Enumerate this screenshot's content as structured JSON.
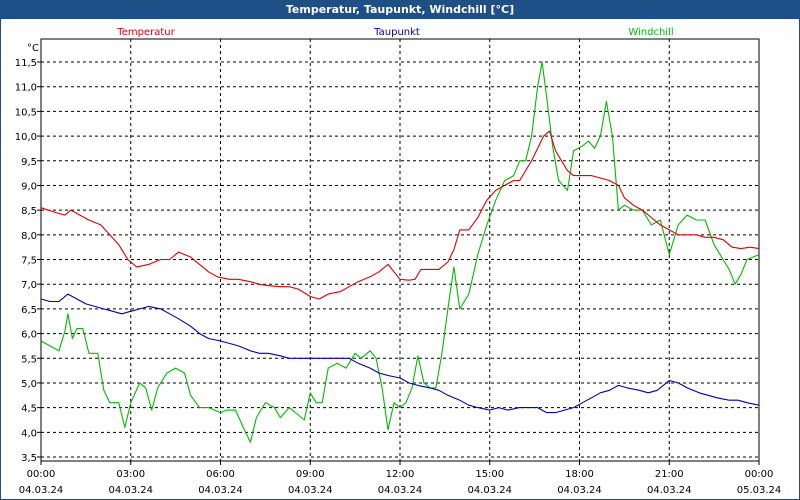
{
  "window": {
    "title": "Temperatur, Taupunkt, Windchill [°C]"
  },
  "chart_data": {
    "type": "line",
    "ylabel": "°C",
    "ylim": [
      3.4,
      11.8
    ],
    "yticks": [
      "3,5",
      "4,0",
      "4,5",
      "5,0",
      "5,5",
      "6,0",
      "6,5",
      "7,0",
      "7,5",
      "8,0",
      "8,5",
      "9,0",
      "9,5",
      "10,0",
      "10,5",
      "11,0",
      "11,5"
    ],
    "xlim": [
      0,
      24
    ],
    "xticks": [
      {
        "time": "00:00",
        "date": "04.03.24"
      },
      {
        "time": "03:00",
        "date": "04.03.24"
      },
      {
        "time": "06:00",
        "date": "04.03.24"
      },
      {
        "time": "09:00",
        "date": "04.03.24"
      },
      {
        "time": "12:00",
        "date": "04.03.24"
      },
      {
        "time": "15:00",
        "date": "04.03.24"
      },
      {
        "time": "18:00",
        "date": "04.03.24"
      },
      {
        "time": "21:00",
        "date": "04.03.24"
      },
      {
        "time": "00:00",
        "date": "05.03.24"
      }
    ],
    "grid": true,
    "series": [
      {
        "name": "Temperatur",
        "color": "#dd0000",
        "points": [
          [
            0,
            8.55
          ],
          [
            0.5,
            8.45
          ],
          [
            0.8,
            8.4
          ],
          [
            1.0,
            8.5
          ],
          [
            1.3,
            8.4
          ],
          [
            1.6,
            8.3
          ],
          [
            2.0,
            8.2
          ],
          [
            2.3,
            8.0
          ],
          [
            2.6,
            7.8
          ],
          [
            2.9,
            7.5
          ],
          [
            3.2,
            7.35
          ],
          [
            3.6,
            7.4
          ],
          [
            4.0,
            7.5
          ],
          [
            4.3,
            7.5
          ],
          [
            4.6,
            7.65
          ],
          [
            5.0,
            7.55
          ],
          [
            5.3,
            7.4
          ],
          [
            5.6,
            7.25
          ],
          [
            5.9,
            7.15
          ],
          [
            6.3,
            7.1
          ],
          [
            6.6,
            7.1
          ],
          [
            7.0,
            7.05
          ],
          [
            7.3,
            7.0
          ],
          [
            7.6,
            6.97
          ],
          [
            8.0,
            6.95
          ],
          [
            8.3,
            6.95
          ],
          [
            8.6,
            6.9
          ],
          [
            9.0,
            6.75
          ],
          [
            9.3,
            6.7
          ],
          [
            9.6,
            6.8
          ],
          [
            10.0,
            6.85
          ],
          [
            10.3,
            6.95
          ],
          [
            10.6,
            7.05
          ],
          [
            11.0,
            7.15
          ],
          [
            11.3,
            7.25
          ],
          [
            11.6,
            7.4
          ],
          [
            11.8,
            7.25
          ],
          [
            12.0,
            7.1
          ],
          [
            12.3,
            7.08
          ],
          [
            12.5,
            7.1
          ],
          [
            12.7,
            7.3
          ],
          [
            13.0,
            7.3
          ],
          [
            13.3,
            7.3
          ],
          [
            13.6,
            7.45
          ],
          [
            13.8,
            7.7
          ],
          [
            14.0,
            8.1
          ],
          [
            14.3,
            8.1
          ],
          [
            14.6,
            8.35
          ],
          [
            14.9,
            8.7
          ],
          [
            15.2,
            8.9
          ],
          [
            15.5,
            9.0
          ],
          [
            15.8,
            9.1
          ],
          [
            16.0,
            9.1
          ],
          [
            16.2,
            9.3
          ],
          [
            16.4,
            9.5
          ],
          [
            16.6,
            9.75
          ],
          [
            16.8,
            10.0
          ],
          [
            17.0,
            10.1
          ],
          [
            17.2,
            9.7
          ],
          [
            17.4,
            9.5
          ],
          [
            17.6,
            9.3
          ],
          [
            17.8,
            9.2
          ],
          [
            18.1,
            9.2
          ],
          [
            18.4,
            9.2
          ],
          [
            18.7,
            9.15
          ],
          [
            19.0,
            9.1
          ],
          [
            19.3,
            9.0
          ],
          [
            19.5,
            8.75
          ],
          [
            19.8,
            8.6
          ],
          [
            20.1,
            8.5
          ],
          [
            20.4,
            8.35
          ],
          [
            20.7,
            8.2
          ],
          [
            21.0,
            8.1
          ],
          [
            21.3,
            8.0
          ],
          [
            21.6,
            8.0
          ],
          [
            21.9,
            8.0
          ],
          [
            22.2,
            7.95
          ],
          [
            22.5,
            7.95
          ],
          [
            22.8,
            7.9
          ],
          [
            23.1,
            7.75
          ],
          [
            23.4,
            7.72
          ],
          [
            23.7,
            7.75
          ],
          [
            24.0,
            7.72
          ]
        ]
      },
      {
        "name": "Taupunkt",
        "color": "#0000aa",
        "points": [
          [
            0,
            6.7
          ],
          [
            0.3,
            6.65
          ],
          [
            0.6,
            6.65
          ],
          [
            0.9,
            6.8
          ],
          [
            1.2,
            6.7
          ],
          [
            1.5,
            6.6
          ],
          [
            1.8,
            6.55
          ],
          [
            2.1,
            6.5
          ],
          [
            2.4,
            6.45
          ],
          [
            2.7,
            6.4
          ],
          [
            3.0,
            6.45
          ],
          [
            3.3,
            6.5
          ],
          [
            3.6,
            6.55
          ],
          [
            4.0,
            6.5
          ],
          [
            4.3,
            6.4
          ],
          [
            4.6,
            6.3
          ],
          [
            5.0,
            6.15
          ],
          [
            5.3,
            6.0
          ],
          [
            5.6,
            5.9
          ],
          [
            6.0,
            5.85
          ],
          [
            6.3,
            5.8
          ],
          [
            6.6,
            5.75
          ],
          [
            7.0,
            5.65
          ],
          [
            7.3,
            5.6
          ],
          [
            7.6,
            5.6
          ],
          [
            8.0,
            5.55
          ],
          [
            8.3,
            5.5
          ],
          [
            8.6,
            5.5
          ],
          [
            9.0,
            5.5
          ],
          [
            9.3,
            5.5
          ],
          [
            9.6,
            5.5
          ],
          [
            10.0,
            5.5
          ],
          [
            10.3,
            5.5
          ],
          [
            10.6,
            5.4
          ],
          [
            11.0,
            5.3
          ],
          [
            11.3,
            5.2
          ],
          [
            11.6,
            5.15
          ],
          [
            12.0,
            5.1
          ],
          [
            12.3,
            5.0
          ],
          [
            12.6,
            4.95
          ],
          [
            13.0,
            4.9
          ],
          [
            13.3,
            4.85
          ],
          [
            13.6,
            4.75
          ],
          [
            14.0,
            4.65
          ],
          [
            14.3,
            4.55
          ],
          [
            14.6,
            4.5
          ],
          [
            15.0,
            4.45
          ],
          [
            15.3,
            4.5
          ],
          [
            15.6,
            4.45
          ],
          [
            16.0,
            4.5
          ],
          [
            16.3,
            4.5
          ],
          [
            16.6,
            4.5
          ],
          [
            16.9,
            4.4
          ],
          [
            17.2,
            4.4
          ],
          [
            17.5,
            4.45
          ],
          [
            17.8,
            4.5
          ],
          [
            18.1,
            4.6
          ],
          [
            18.4,
            4.7
          ],
          [
            18.7,
            4.8
          ],
          [
            19.0,
            4.85
          ],
          [
            19.3,
            4.95
          ],
          [
            19.6,
            4.9
          ],
          [
            20.0,
            4.85
          ],
          [
            20.3,
            4.8
          ],
          [
            20.6,
            4.85
          ],
          [
            21.0,
            5.05
          ],
          [
            21.3,
            5.0
          ],
          [
            21.6,
            4.9
          ],
          [
            22.0,
            4.8
          ],
          [
            22.3,
            4.75
          ],
          [
            22.6,
            4.7
          ],
          [
            23.0,
            4.65
          ],
          [
            23.3,
            4.65
          ],
          [
            23.6,
            4.6
          ],
          [
            24.0,
            4.55
          ]
        ]
      },
      {
        "name": "Windchill",
        "color": "#00bb00",
        "points": [
          [
            0,
            5.85
          ],
          [
            0.3,
            5.75
          ],
          [
            0.6,
            5.65
          ],
          [
            0.8,
            6.05
          ],
          [
            0.9,
            6.4
          ],
          [
            1.05,
            5.9
          ],
          [
            1.2,
            6.1
          ],
          [
            1.4,
            6.1
          ],
          [
            1.6,
            5.6
          ],
          [
            1.9,
            5.6
          ],
          [
            2.1,
            4.85
          ],
          [
            2.3,
            4.6
          ],
          [
            2.6,
            4.6
          ],
          [
            2.8,
            4.1
          ],
          [
            3.0,
            4.6
          ],
          [
            3.3,
            5.0
          ],
          [
            3.5,
            4.9
          ],
          [
            3.7,
            4.45
          ],
          [
            3.9,
            4.9
          ],
          [
            4.2,
            5.2
          ],
          [
            4.5,
            5.3
          ],
          [
            4.8,
            5.2
          ],
          [
            5.0,
            4.75
          ],
          [
            5.3,
            4.5
          ],
          [
            5.6,
            4.5
          ],
          [
            6.0,
            4.4
          ],
          [
            6.2,
            4.45
          ],
          [
            6.5,
            4.45
          ],
          [
            6.8,
            4.05
          ],
          [
            7.0,
            3.8
          ],
          [
            7.2,
            4.3
          ],
          [
            7.5,
            4.6
          ],
          [
            7.8,
            4.5
          ],
          [
            8.0,
            4.3
          ],
          [
            8.3,
            4.5
          ],
          [
            8.6,
            4.35
          ],
          [
            8.8,
            4.25
          ],
          [
            9.0,
            4.8
          ],
          [
            9.2,
            4.6
          ],
          [
            9.4,
            4.6
          ],
          [
            9.6,
            5.3
          ],
          [
            9.9,
            5.4
          ],
          [
            10.2,
            5.3
          ],
          [
            10.5,
            5.6
          ],
          [
            10.7,
            5.5
          ],
          [
            11.0,
            5.65
          ],
          [
            11.2,
            5.5
          ],
          [
            11.4,
            4.9
          ],
          [
            11.6,
            4.05
          ],
          [
            11.8,
            4.6
          ],
          [
            12.0,
            4.5
          ],
          [
            12.2,
            4.6
          ],
          [
            12.4,
            4.9
          ],
          [
            12.6,
            5.55
          ],
          [
            12.8,
            5.0
          ],
          [
            13.0,
            4.9
          ],
          [
            13.2,
            4.9
          ],
          [
            13.4,
            5.6
          ],
          [
            13.6,
            6.5
          ],
          [
            13.8,
            7.35
          ],
          [
            14.0,
            6.5
          ],
          [
            14.3,
            6.8
          ],
          [
            14.6,
            7.6
          ],
          [
            14.9,
            8.2
          ],
          [
            15.2,
            8.7
          ],
          [
            15.5,
            9.1
          ],
          [
            15.8,
            9.2
          ],
          [
            16.0,
            9.5
          ],
          [
            16.2,
            9.5
          ],
          [
            16.4,
            10.0
          ],
          [
            16.6,
            11.0
          ],
          [
            16.75,
            11.5
          ],
          [
            16.9,
            10.8
          ],
          [
            17.1,
            9.8
          ],
          [
            17.3,
            9.1
          ],
          [
            17.6,
            8.9
          ],
          [
            17.8,
            9.7
          ],
          [
            18.1,
            9.8
          ],
          [
            18.3,
            9.9
          ],
          [
            18.5,
            9.75
          ],
          [
            18.7,
            10.0
          ],
          [
            18.9,
            10.7
          ],
          [
            19.1,
            10.0
          ],
          [
            19.3,
            8.5
          ],
          [
            19.5,
            8.6
          ],
          [
            19.8,
            8.5
          ],
          [
            20.1,
            8.5
          ],
          [
            20.4,
            8.2
          ],
          [
            20.7,
            8.3
          ],
          [
            21.0,
            7.6
          ],
          [
            21.3,
            8.2
          ],
          [
            21.6,
            8.4
          ],
          [
            21.9,
            8.3
          ],
          [
            22.2,
            8.3
          ],
          [
            22.5,
            7.8
          ],
          [
            22.8,
            7.5
          ],
          [
            23.0,
            7.3
          ],
          [
            23.2,
            7.0
          ],
          [
            23.4,
            7.2
          ],
          [
            23.6,
            7.5
          ],
          [
            24.0,
            7.6
          ]
        ]
      }
    ]
  }
}
